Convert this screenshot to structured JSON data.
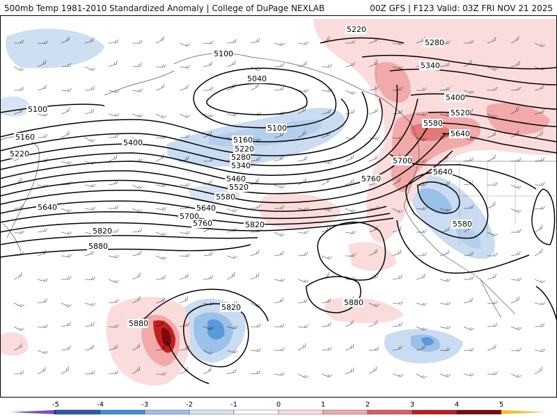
{
  "header": {
    "title_left": "500mb Temp 1981-2010 Standardized Anomaly | College of DuPage NEXLAB",
    "title_right": "00Z GFS | F123 Valid: 03Z FRI NOV 21 2025"
  },
  "contour_labels": [
    "5040",
    "5100",
    "5160",
    "5220",
    "5280",
    "5340",
    "5400",
    "5460",
    "5520",
    "5580",
    "5640",
    "5700",
    "5760",
    "5820",
    "5880"
  ],
  "map_labels": [
    {
      "id": "l-5220-ne",
      "text": "5220"
    },
    {
      "id": "l-5280-ne",
      "text": "5280"
    },
    {
      "id": "l-5340-ne",
      "text": "5340"
    },
    {
      "id": "l-5400-ne",
      "text": "5400"
    },
    {
      "id": "l-5520-ne",
      "text": "5520"
    },
    {
      "id": "l-5580-ne",
      "text": "5580"
    },
    {
      "id": "l-5640-ne",
      "text": "5640"
    },
    {
      "id": "l-5700-c",
      "text": "5700"
    },
    {
      "id": "l-5640-c",
      "text": "5640"
    },
    {
      "id": "l-5760-c",
      "text": "5760"
    },
    {
      "id": "l-5580-low",
      "text": "5580"
    },
    {
      "id": "l-5100-nw",
      "text": "5100"
    },
    {
      "id": "l-5040-n",
      "text": "5040"
    },
    {
      "id": "l-5100-w",
      "text": "5100"
    },
    {
      "id": "l-5160-w",
      "text": "5160"
    },
    {
      "id": "l-5220-w",
      "text": "5220"
    },
    {
      "id": "l-5400-w",
      "text": "5400"
    },
    {
      "id": "l-5100-c",
      "text": "5100"
    },
    {
      "id": "l-5160-c",
      "text": "5160"
    },
    {
      "id": "l-5220-c",
      "text": "5220"
    },
    {
      "id": "l-5280-c",
      "text": "5280"
    },
    {
      "id": "l-5340-c",
      "text": "5340"
    },
    {
      "id": "l-5460-c",
      "text": "5460"
    },
    {
      "id": "l-5520-c",
      "text": "5520"
    },
    {
      "id": "l-5580-c",
      "text": "5580"
    },
    {
      "id": "l-5640-w",
      "text": "5640"
    },
    {
      "id": "l-5640-c2",
      "text": "5640"
    },
    {
      "id": "l-5700-w",
      "text": "5700"
    },
    {
      "id": "l-5760-w",
      "text": "5760"
    },
    {
      "id": "l-5820-w",
      "text": "5820"
    },
    {
      "id": "l-5820-c",
      "text": "5820"
    },
    {
      "id": "l-5880-w",
      "text": "5880"
    },
    {
      "id": "l-5820-s",
      "text": "5820"
    },
    {
      "id": "l-5880-s",
      "text": "5880"
    },
    {
      "id": "l-5880-e",
      "text": "5880"
    }
  ],
  "legend": {
    "ticks": [
      "-5",
      "-4",
      "-3",
      "-2",
      "-1",
      "0",
      "1",
      "2",
      "3",
      "4",
      "5"
    ],
    "colors": [
      "#7a4fc4",
      "#1f3a7a",
      "#2d5aa8",
      "#3f8fd8",
      "#9cc1e8",
      "#d6e4f4",
      "#ffffff",
      "#fbdcdc",
      "#f2a9a9",
      "#d85f5f",
      "#b81f1f",
      "#7a0a0a",
      "#f2c12e"
    ]
  },
  "anomaly_colors": {
    "light_blue": "#c9dcf1",
    "blue": "#9cc1e8",
    "mid_blue": "#5a9ad8",
    "deep_blue": "#2d6fc4",
    "light_red": "#fbdcdc",
    "red": "#f2a9a9",
    "mid_red": "#e27878",
    "deep_red": "#c21f1f",
    "darkest_red": "#7a0a0a"
  }
}
